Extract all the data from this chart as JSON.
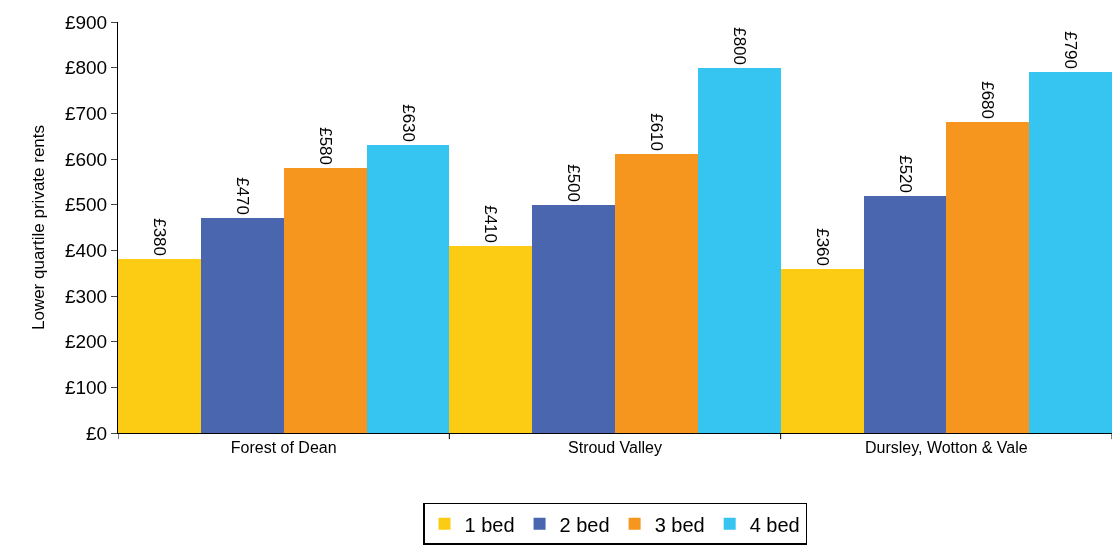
{
  "chart_data": {
    "type": "bar",
    "ylabel": "Lower quartile private rents",
    "categories": [
      "Forest of Dean",
      "Stroud Valley",
      "Dursley, Wotton & Vale"
    ],
    "series": [
      {
        "name": "1 bed",
        "color": "#fccc14",
        "values": [
          380,
          410,
          360
        ],
        "value_labels": [
          "£380",
          "£410",
          "£360"
        ]
      },
      {
        "name": "2 bed",
        "color": "#4a66ae",
        "values": [
          470,
          500,
          520
        ],
        "value_labels": [
          "£470",
          "£500",
          "£520"
        ]
      },
      {
        "name": "3 bed",
        "color": "#f7961e",
        "values": [
          580,
          610,
          680
        ],
        "value_labels": [
          "£580",
          "£610",
          "£680"
        ]
      },
      {
        "name": "4 bed",
        "color": "#35c5f0",
        "values": [
          630,
          800,
          790
        ],
        "value_labels": [
          "£630",
          "£800",
          "£790"
        ]
      }
    ],
    "ylim": [
      0,
      900
    ],
    "yticks": [
      {
        "value": 0,
        "label": "£0"
      },
      {
        "value": 100,
        "label": "£100"
      },
      {
        "value": 200,
        "label": "£200"
      },
      {
        "value": 300,
        "label": "£300"
      },
      {
        "value": 400,
        "label": "£400"
      },
      {
        "value": 500,
        "label": "£500"
      },
      {
        "value": 600,
        "label": "£600"
      },
      {
        "value": 700,
        "label": "£700"
      },
      {
        "value": 800,
        "label": "£800"
      },
      {
        "value": 900,
        "label": "£900"
      }
    ],
    "legend": "bottom"
  }
}
